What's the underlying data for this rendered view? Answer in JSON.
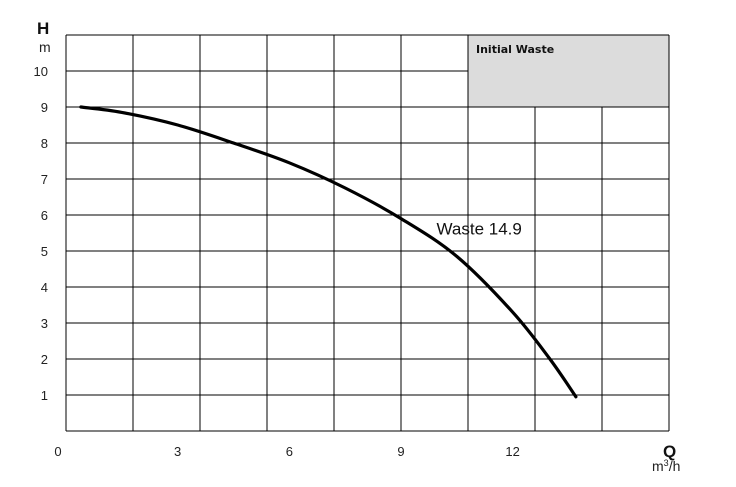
{
  "chart_data": {
    "type": "line",
    "ylabel": "H",
    "yunit": "m",
    "xlabel": "Q",
    "xunit_base": "m",
    "xunit_exp": "3",
    "xunit_tail": "/h",
    "xlim": [
      0,
      16.2
    ],
    "ylim": [
      0,
      11
    ],
    "x_ticks": [
      0,
      3,
      6,
      9,
      12
    ],
    "y_ticks": [
      1,
      2,
      3,
      4,
      5,
      6,
      7,
      8,
      9,
      10
    ],
    "legend_title": "Initial  Waste",
    "grid": true,
    "series": [
      {
        "name": "Waste 14.9",
        "color": "#000000",
        "x": [
          0.4,
          1.5,
          3.0,
          4.5,
          6.0,
          7.5,
          9.0,
          10.5,
          12.0,
          13.0,
          13.7
        ],
        "y": [
          9.0,
          8.85,
          8.5,
          8.0,
          7.45,
          6.75,
          5.9,
          4.85,
          3.3,
          2.0,
          0.95
        ]
      }
    ]
  }
}
